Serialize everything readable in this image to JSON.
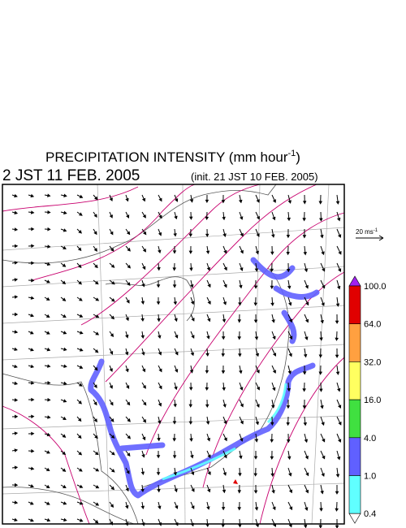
{
  "title": {
    "text": "PRECIPITATION INTENSITY (mm hour",
    "superscript": "-1",
    "close": ")"
  },
  "valid_time": "2 JST 11 FEB. 2005",
  "init_time": "(init. 21 JST 10 FEB. 2005)",
  "wind_scale": {
    "label": "20 ms",
    "superscript": "-1"
  },
  "color_scale": {
    "levels": [
      "100.0",
      "64.0",
      "32.0",
      "16.0",
      "4.0",
      "1.0",
      "0.4"
    ],
    "over_color": "#a020f0",
    "colors": [
      "#e00000",
      "#ffa040",
      "#ffff60",
      "#40e040",
      "#6060ff",
      "#60ffff"
    ],
    "under_color": "#ffffff"
  }
}
